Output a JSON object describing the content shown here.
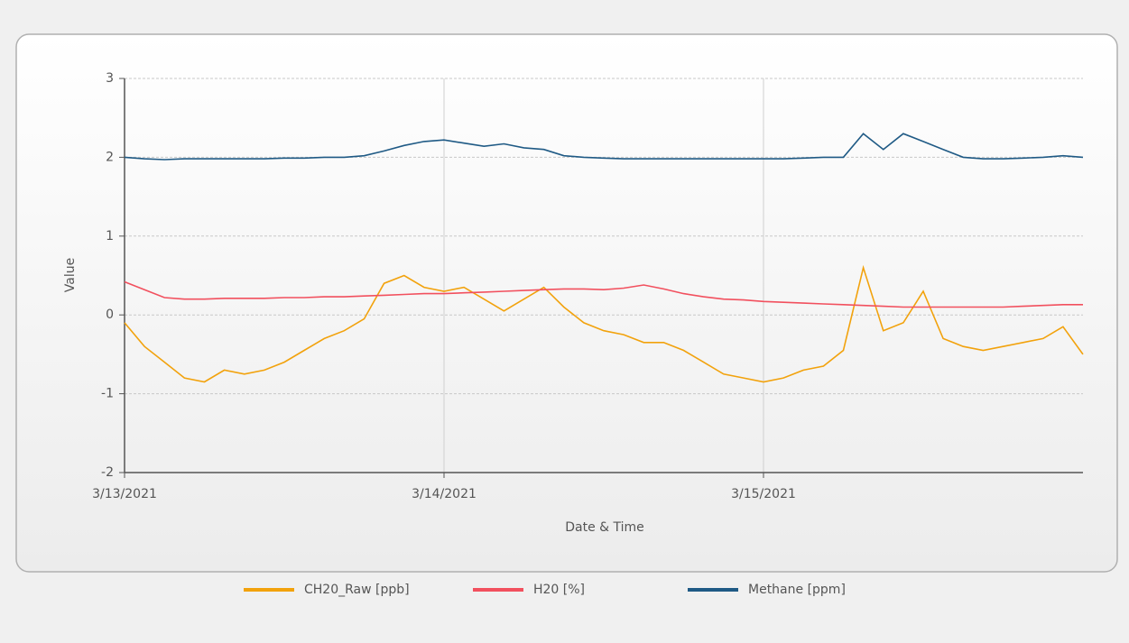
{
  "chart_data": {
    "type": "line",
    "x_label": "Date & Time",
    "y_label": "Value",
    "categories": [
      "3/13/2021",
      null,
      null,
      null,
      null,
      null,
      null,
      null,
      null,
      null,
      null,
      null,
      null,
      null,
      null,
      null,
      "3/14/2021",
      null,
      null,
      null,
      null,
      null,
      null,
      null,
      null,
      null,
      null,
      null,
      null,
      null,
      null,
      null,
      "3/15/2021",
      null,
      null,
      null,
      null,
      null,
      null,
      null,
      null,
      null,
      null,
      null,
      null,
      null,
      null,
      null,
      null
    ],
    "series": [
      {
        "name": "CH20_Raw [ppb]",
        "color": "#f2a20c",
        "values": [
          -0.1,
          -0.4,
          -0.6,
          -0.8,
          -0.85,
          -0.7,
          -0.75,
          -0.7,
          -0.6,
          -0.45,
          -0.3,
          -0.2,
          -0.05,
          0.4,
          0.5,
          0.35,
          0.3,
          0.35,
          0.2,
          0.05,
          0.2,
          0.35,
          0.1,
          -0.1,
          -0.2,
          -0.25,
          -0.35,
          -0.35,
          -0.45,
          -0.6,
          -0.75,
          -0.8,
          -0.85,
          -0.8,
          -0.7,
          -0.65,
          -0.45,
          0.6,
          -0.2,
          -0.1,
          0.3,
          -0.3,
          -0.4,
          -0.45,
          -0.4,
          -0.35,
          -0.3,
          -0.15,
          -0.5
        ]
      },
      {
        "name": "H20 [%]",
        "color": "#f2505e",
        "values": [
          0.42,
          0.32,
          0.22,
          0.2,
          0.2,
          0.21,
          0.21,
          0.21,
          0.22,
          0.22,
          0.23,
          0.23,
          0.24,
          0.25,
          0.26,
          0.27,
          0.27,
          0.28,
          0.29,
          0.3,
          0.31,
          0.32,
          0.33,
          0.33,
          0.32,
          0.34,
          0.38,
          0.33,
          0.27,
          0.23,
          0.2,
          0.19,
          0.17,
          0.16,
          0.15,
          0.14,
          0.13,
          0.12,
          0.11,
          0.1,
          0.1,
          0.1,
          0.1,
          0.1,
          0.1,
          0.11,
          0.12,
          0.13,
          0.13
        ]
      },
      {
        "name": "Methane [ppm]",
        "color": "#1f5a85",
        "values": [
          2.0,
          1.98,
          1.97,
          1.98,
          1.98,
          1.98,
          1.98,
          1.98,
          1.99,
          1.99,
          2.0,
          2.0,
          2.02,
          2.08,
          2.15,
          2.2,
          2.22,
          2.18,
          2.14,
          2.17,
          2.12,
          2.1,
          2.02,
          2.0,
          1.99,
          1.98,
          1.98,
          1.98,
          1.98,
          1.98,
          1.98,
          1.98,
          1.98,
          1.98,
          1.99,
          2.0,
          2.0,
          2.3,
          2.1,
          2.3,
          2.2,
          2.1,
          2.0,
          1.98,
          1.98,
          1.99,
          2.0,
          2.02,
          2.0
        ]
      }
    ],
    "ylim": [
      -2,
      3
    ],
    "yticks": [
      -2,
      -1,
      0,
      1,
      2,
      3
    ],
    "grid": true,
    "legend": "bottom"
  }
}
